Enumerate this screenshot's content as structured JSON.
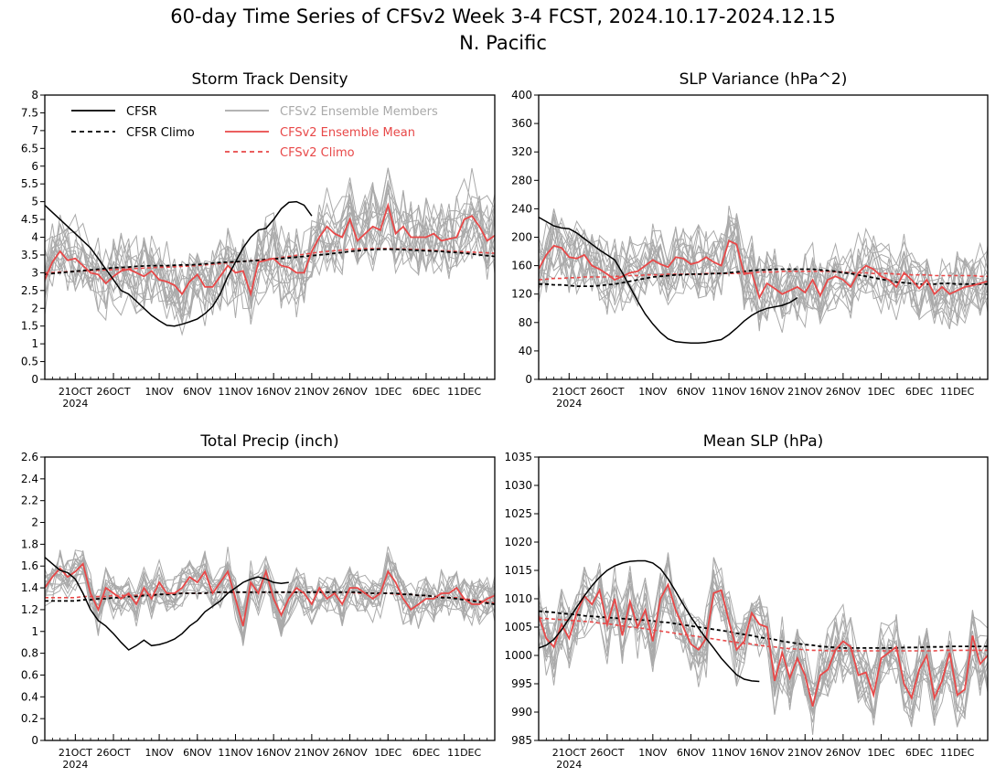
{
  "title": {
    "line1": "60-day Time Series of CFSv2 Week 3-4 FCST, 2024.10.17-2024.12.15",
    "line2": "N. Pacific"
  },
  "colors": {
    "cfsr": "#000000",
    "members": "#aaaaaa",
    "ens_mean": "#e84848",
    "cfsv2_climo": "#e84848"
  },
  "legend": {
    "cfsr": "CFSR",
    "cfsr_climo": "CFSR Climo",
    "members": "CFSv2 Ensemble Members",
    "ens_mean": "CFSv2 Ensemble Mean",
    "cfsv2_climo": "CFSv2 Climo"
  },
  "x_ticks": [
    "21OCT",
    "26OCT",
    "1NOV",
    "6NOV",
    "11NOV",
    "16NOV",
    "21NOV",
    "26NOV",
    "1DEC",
    "6DEC",
    "11DEC"
  ],
  "x_tick_days": [
    4,
    9,
    15,
    20,
    25,
    30,
    35,
    40,
    45,
    50,
    55
  ],
  "x_year_label": "2024",
  "chart_data": [
    {
      "type": "line",
      "title": "Storm Track Density",
      "x_start": "2024-10-17",
      "x_end": "2024-12-15",
      "ylim": [
        0,
        8
      ],
      "yticks": [
        0,
        0.5,
        1,
        1.5,
        2,
        2.5,
        3,
        3.5,
        4,
        4.5,
        5,
        5.5,
        6,
        6.5,
        7,
        7.5,
        8
      ],
      "ytick_labels": [
        "0",
        "0.5",
        "1",
        "1.5",
        "2",
        "2.5",
        "3",
        "3.5",
        "4",
        "4.5",
        "5",
        "5.5",
        "6",
        "6.5",
        "7",
        "7.5",
        "8"
      ],
      "legend_position": "top-left",
      "cfsr": [
        4.9,
        4.7,
        4.5,
        4.3,
        4.1,
        3.9,
        3.7,
        3.4,
        3.1,
        2.8,
        2.5,
        2.4,
        2.2,
        2.0,
        1.8,
        1.65,
        1.52,
        1.5,
        1.55,
        1.62,
        1.7,
        1.85,
        2.05,
        2.4,
        2.9,
        3.3,
        3.7,
        4.0,
        4.2,
        4.25,
        4.5,
        4.8,
        4.98,
        5.0,
        4.9,
        4.6
      ],
      "cfsr_climo": [
        2.95,
        2.98,
        3.0,
        3.02,
        3.04,
        3.06,
        3.08,
        3.1,
        3.12,
        3.14,
        3.15,
        3.16,
        3.18,
        3.19,
        3.2,
        3.2,
        3.2,
        3.21,
        3.22,
        3.22,
        3.23,
        3.25,
        3.27,
        3.29,
        3.3,
        3.31,
        3.32,
        3.33,
        3.35,
        3.37,
        3.39,
        3.4,
        3.42,
        3.44,
        3.46,
        3.48,
        3.5,
        3.52,
        3.55,
        3.57,
        3.6,
        3.62,
        3.64,
        3.65,
        3.66,
        3.66,
        3.66,
        3.65,
        3.64,
        3.63,
        3.62,
        3.61,
        3.6,
        3.58,
        3.57,
        3.55,
        3.53,
        3.5,
        3.48,
        3.46
      ],
      "cfsv2_climo": [
        3.0,
        3.01,
        3.02,
        3.03,
        3.04,
        3.05,
        3.06,
        3.07,
        3.08,
        3.09,
        3.1,
        3.11,
        3.12,
        3.13,
        3.14,
        3.15,
        3.16,
        3.17,
        3.18,
        3.19,
        3.2,
        3.22,
        3.24,
        3.26,
        3.28,
        3.3,
        3.32,
        3.34,
        3.36,
        3.38,
        3.4,
        3.43,
        3.46,
        3.49,
        3.52,
        3.55,
        3.58,
        3.6,
        3.62,
        3.64,
        3.66,
        3.67,
        3.68,
        3.68,
        3.68,
        3.68,
        3.67,
        3.67,
        3.66,
        3.65,
        3.64,
        3.63,
        3.62,
        3.61,
        3.6,
        3.59,
        3.58,
        3.57,
        3.56,
        3.55
      ],
      "ens_mean": [
        2.8,
        3.3,
        3.6,
        3.35,
        3.4,
        3.2,
        3.0,
        2.95,
        2.7,
        2.9,
        3.05,
        3.1,
        3.0,
        2.9,
        3.05,
        2.8,
        2.75,
        2.65,
        2.4,
        2.75,
        2.95,
        2.6,
        2.6,
        2.9,
        3.2,
        3.0,
        3.05,
        2.4,
        3.3,
        3.35,
        3.4,
        3.2,
        3.15,
        3.0,
        3.0,
        3.6,
        4.0,
        4.3,
        4.1,
        4.0,
        4.5,
        3.9,
        4.1,
        4.3,
        4.2,
        4.9,
        4.1,
        4.3,
        4.0,
        4.0,
        4.0,
        4.1,
        3.9,
        3.95,
        4.0,
        4.5,
        4.6,
        4.3,
        3.9,
        4.05
      ],
      "member_mean_ref": "ens_mean",
      "member_spread": 1.0,
      "member_count": 16,
      "member_ylim": [
        0.3,
        7.0
      ]
    },
    {
      "type": "line",
      "title": "SLP Variance (hPa^2)",
      "x_start": "2024-10-17",
      "x_end": "2024-12-15",
      "ylim": [
        0,
        400
      ],
      "yticks": [
        0,
        40,
        80,
        120,
        160,
        200,
        240,
        280,
        320,
        360,
        400
      ],
      "ytick_labels": [
        "0",
        "40",
        "80",
        "120",
        "160",
        "200",
        "240",
        "280",
        "320",
        "360",
        "400"
      ],
      "cfsr": [
        228,
        222,
        216,
        213,
        212,
        206,
        198,
        190,
        182,
        175,
        168,
        150,
        130,
        110,
        92,
        78,
        66,
        57,
        53,
        52,
        51,
        51,
        52,
        54,
        56,
        63,
        72,
        82,
        90,
        96,
        100,
        102,
        104,
        108,
        115
      ],
      "cfsr_climo": [
        134,
        134,
        133,
        133,
        132,
        131,
        131,
        131,
        132,
        133,
        134,
        136,
        138,
        140,
        142,
        144,
        145,
        146,
        147,
        147,
        148,
        148,
        148,
        149,
        149,
        150,
        151,
        152,
        153,
        154,
        154,
        155,
        155,
        155,
        155,
        155,
        155,
        154,
        153,
        152,
        150,
        149,
        147,
        145,
        143,
        141,
        139,
        137,
        136,
        135,
        134,
        134,
        134,
        135,
        135,
        134,
        134,
        134,
        134,
        134
      ],
      "cfsv2_climo": [
        140,
        141,
        142,
        142,
        143,
        143,
        144,
        144,
        144,
        144,
        145,
        145,
        146,
        146,
        147,
        147,
        147,
        148,
        148,
        148,
        148,
        148,
        149,
        149,
        149,
        149,
        149,
        150,
        150,
        151,
        151,
        151,
        152,
        152,
        152,
        152,
        152,
        152,
        152,
        151,
        151,
        150,
        150,
        150,
        149,
        149,
        149,
        148,
        148,
        147,
        147,
        147,
        146,
        146,
        146,
        146,
        146,
        146,
        145,
        145
      ],
      "ens_mean": [
        155,
        175,
        188,
        185,
        172,
        170,
        175,
        160,
        155,
        148,
        140,
        145,
        150,
        152,
        160,
        168,
        162,
        158,
        172,
        170,
        162,
        165,
        172,
        165,
        160,
        195,
        190,
        148,
        150,
        115,
        135,
        128,
        120,
        125,
        130,
        122,
        140,
        118,
        140,
        145,
        140,
        130,
        150,
        160,
        155,
        145,
        140,
        130,
        150,
        140,
        128,
        140,
        120,
        130,
        120,
        125,
        130,
        132,
        135,
        138
      ],
      "member_mean_ref": "ens_mean",
      "member_spread": 45,
      "member_count": 16,
      "member_ylim": [
        40,
        340
      ]
    },
    {
      "type": "line",
      "title": "Total Precip (inch)",
      "x_start": "2024-10-17",
      "x_end": "2024-12-15",
      "ylim": [
        0,
        2.6
      ],
      "yticks": [
        0,
        0.2,
        0.4,
        0.6,
        0.8,
        1,
        1.2,
        1.4,
        1.6,
        1.8,
        2,
        2.2,
        2.4,
        2.6
      ],
      "ytick_labels": [
        "0",
        "0.2",
        "0.4",
        "0.6",
        "0.8",
        "1",
        "1.2",
        "1.4",
        "1.6",
        "1.8",
        "2",
        "2.2",
        "2.4",
        "2.6"
      ],
      "cfsr": [
        1.68,
        1.62,
        1.56,
        1.54,
        1.48,
        1.35,
        1.2,
        1.1,
        1.05,
        0.98,
        0.9,
        0.83,
        0.87,
        0.92,
        0.87,
        0.88,
        0.9,
        0.93,
        0.98,
        1.05,
        1.1,
        1.18,
        1.23,
        1.28,
        1.35,
        1.4,
        1.45,
        1.48,
        1.5,
        1.48,
        1.45,
        1.44,
        1.45
      ],
      "cfsr_climo": [
        1.28,
        1.28,
        1.28,
        1.28,
        1.28,
        1.29,
        1.29,
        1.3,
        1.3,
        1.31,
        1.31,
        1.32,
        1.32,
        1.33,
        1.33,
        1.34,
        1.34,
        1.34,
        1.35,
        1.35,
        1.35,
        1.35,
        1.36,
        1.36,
        1.36,
        1.36,
        1.36,
        1.36,
        1.36,
        1.36,
        1.36,
        1.36,
        1.36,
        1.36,
        1.36,
        1.36,
        1.36,
        1.36,
        1.36,
        1.36,
        1.36,
        1.36,
        1.35,
        1.35,
        1.35,
        1.35,
        1.35,
        1.34,
        1.34,
        1.33,
        1.33,
        1.32,
        1.31,
        1.31,
        1.3,
        1.29,
        1.28,
        1.27,
        1.26,
        1.25
      ],
      "cfsv2_climo": [
        1.31,
        1.31,
        1.31,
        1.31,
        1.31,
        1.32,
        1.32,
        1.32,
        1.32,
        1.33,
        1.33,
        1.33,
        1.33,
        1.34,
        1.34,
        1.34,
        1.34,
        1.35,
        1.35,
        1.35,
        1.35,
        1.35,
        1.36,
        1.36,
        1.36,
        1.36,
        1.36,
        1.36,
        1.36,
        1.36,
        1.36,
        1.36,
        1.36,
        1.36,
        1.36,
        1.36,
        1.36,
        1.36,
        1.36,
        1.36,
        1.36,
        1.35,
        1.35,
        1.35,
        1.35,
        1.35,
        1.34,
        1.34,
        1.34,
        1.33,
        1.33,
        1.32,
        1.32,
        1.31,
        1.31,
        1.3,
        1.29,
        1.28,
        1.27,
        1.26
      ],
      "ens_mean": [
        1.4,
        1.5,
        1.58,
        1.5,
        1.55,
        1.62,
        1.35,
        1.2,
        1.4,
        1.35,
        1.3,
        1.35,
        1.25,
        1.4,
        1.3,
        1.45,
        1.35,
        1.35,
        1.4,
        1.5,
        1.45,
        1.55,
        1.35,
        1.45,
        1.55,
        1.3,
        1.05,
        1.45,
        1.35,
        1.55,
        1.3,
        1.15,
        1.3,
        1.4,
        1.35,
        1.25,
        1.4,
        1.3,
        1.35,
        1.25,
        1.4,
        1.4,
        1.35,
        1.3,
        1.35,
        1.55,
        1.45,
        1.3,
        1.2,
        1.25,
        1.3,
        1.3,
        1.35,
        1.35,
        1.4,
        1.3,
        1.25,
        1.25,
        1.3,
        1.33
      ],
      "member_mean_ref": "ens_mean",
      "member_spread": 0.18,
      "member_count": 16,
      "member_ylim": [
        0.45,
        1.9
      ]
    },
    {
      "type": "line",
      "title": "Mean SLP (hPa)",
      "x_start": "2024-10-17",
      "x_end": "2024-12-15",
      "ylim": [
        985,
        1035
      ],
      "yticks": [
        985,
        990,
        995,
        1000,
        1005,
        1010,
        1015,
        1020,
        1025,
        1030,
        1035
      ],
      "ytick_labels": [
        "985",
        "990",
        "995",
        "1000",
        "1005",
        "1010",
        "1015",
        "1020",
        "1025",
        "1030",
        "1035"
      ],
      "cfsr": [
        1001.3,
        1001.8,
        1002.8,
        1004.5,
        1006.5,
        1008.5,
        1010.5,
        1012.3,
        1013.8,
        1015.0,
        1015.8,
        1016.3,
        1016.6,
        1016.7,
        1016.7,
        1016.3,
        1015.3,
        1013.5,
        1011.3,
        1009.0,
        1006.8,
        1004.8,
        1003.0,
        1001.3,
        999.5,
        998.0,
        996.6,
        995.8,
        995.5,
        995.4
      ],
      "cfsr_climo": [
        1007.8,
        1007.7,
        1007.6,
        1007.4,
        1007.3,
        1007.2,
        1007.0,
        1006.9,
        1006.8,
        1006.7,
        1006.6,
        1006.5,
        1006.4,
        1006.3,
        1006.2,
        1006.1,
        1005.9,
        1005.8,
        1005.6,
        1005.4,
        1005.2,
        1005.0,
        1004.8,
        1004.6,
        1004.4,
        1004.2,
        1003.9,
        1003.7,
        1003.5,
        1003.2,
        1003.0,
        1002.8,
        1002.5,
        1002.3,
        1002.1,
        1001.9,
        1001.8,
        1001.6,
        1001.5,
        1001.4,
        1001.3,
        1001.3,
        1001.3,
        1001.3,
        1001.3,
        1001.3,
        1001.3,
        1001.3,
        1001.4,
        1001.4,
        1001.4,
        1001.5,
        1001.5,
        1001.5,
        1001.6,
        1001.6,
        1001.6,
        1001.6,
        1001.6,
        1001.6
      ],
      "cfsv2_climo": [
        1006.6,
        1006.5,
        1006.4,
        1006.3,
        1006.2,
        1006.1,
        1006.0,
        1005.9,
        1005.7,
        1005.6,
        1005.4,
        1005.2,
        1005.0,
        1004.9,
        1004.7,
        1004.5,
        1004.3,
        1004.1,
        1003.9,
        1003.7,
        1003.5,
        1003.3,
        1003.1,
        1002.9,
        1002.7,
        1002.5,
        1002.3,
        1002.1,
        1002.0,
        1001.8,
        1001.6,
        1001.5,
        1001.3,
        1001.2,
        1001.1,
        1001.0,
        1000.9,
        1000.9,
        1000.8,
        1000.8,
        1000.8,
        1000.8,
        1000.8,
        1000.8,
        1000.8,
        1000.8,
        1000.8,
        1000.8,
        1000.8,
        1000.8,
        1000.8,
        1000.8,
        1000.8,
        1000.9,
        1000.9,
        1000.9,
        1000.9,
        1000.9,
        1000.9,
        1000.9
      ],
      "ens_mean": [
        1007.0,
        1003.0,
        1001.5,
        1005.5,
        1003.0,
        1007.5,
        1010.5,
        1009.0,
        1011.5,
        1005.5,
        1010.0,
        1003.5,
        1009.5,
        1005.0,
        1008.0,
        1002.5,
        1010.0,
        1012.5,
        1008.0,
        1005.0,
        1002.0,
        1001.0,
        1003.0,
        1011.0,
        1011.5,
        1006.0,
        1001.0,
        1002.5,
        1007.5,
        1005.5,
        1005.0,
        995.5,
        1000.5,
        996.0,
        999.5,
        996.5,
        991.0,
        996.5,
        997.5,
        1001.0,
        1002.5,
        1001.5,
        996.5,
        997.0,
        993.0,
        999.5,
        1000.5,
        1001.5,
        995.0,
        992.5,
        997.5,
        1000.0,
        992.5,
        995.5,
        1000.5,
        993.0,
        994.0,
        1003.5,
        998.5,
        1000.0
      ],
      "member_mean_ref": "ens_mean",
      "member_spread": 5.5,
      "member_count": 16,
      "member_ylim": [
        986,
        1023
      ]
    }
  ]
}
